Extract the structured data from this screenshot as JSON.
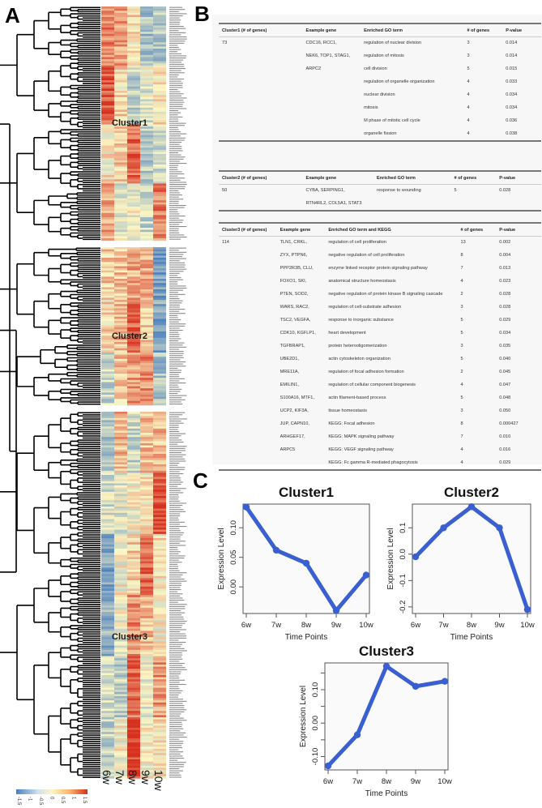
{
  "panel_labels": {
    "a": "A",
    "b": "B",
    "c": "C"
  },
  "heatmap": {
    "columns": [
      "6w",
      "7w",
      "8w",
      "9w",
      "10w"
    ],
    "cluster_labels": [
      "Cluster1",
      "Cluster2",
      "Cluster3"
    ],
    "colorbar": {
      "ticks": [
        "-1.5",
        "-1",
        "-0.5",
        "0",
        "0.5",
        "1",
        "1.5"
      ],
      "low_color": "#4a7fc1",
      "mid_color": "#fbf7c4",
      "high_color": "#d7301f"
    }
  },
  "tables": [
    {
      "headers": [
        "Cluster1 (# of genes)",
        "Example gene",
        "Enriched GO term",
        "# of genes",
        "P-value"
      ],
      "rows": [
        [
          "73",
          "CDC16, RCC1,",
          "regulation of nuclear division",
          "3",
          "0.014"
        ],
        [
          "",
          "NEK6, TOP1, STAG1,",
          "regulation of mitosis",
          "3",
          "0.014"
        ],
        [
          "",
          "ARPC2",
          "cell division",
          "5",
          "0.015"
        ],
        [
          "",
          "",
          "regulation of organelle organization",
          "4",
          "0.033"
        ],
        [
          "",
          "",
          "nuclear division",
          "4",
          "0.034"
        ],
        [
          "",
          "",
          "mitosis",
          "4",
          "0.034"
        ],
        [
          "",
          "",
          "M phase of mitotic cell cycle",
          "4",
          "0.036"
        ],
        [
          "",
          "",
          "organelle fission",
          "4",
          "0.038"
        ]
      ]
    },
    {
      "headers": [
        "Cluster2 (# of genes)",
        "Example gene",
        "Enriched GO term",
        "# of genes",
        "P-value"
      ],
      "rows": [
        [
          "50",
          "CYBA, SERPING1,",
          "response to wounding",
          "5",
          "0.028"
        ],
        [
          "",
          "RTN4RL2, COL5A1, STAT3",
          "",
          "",
          ""
        ]
      ]
    },
    {
      "headers": [
        "Cluster3 (# of genes)",
        "Example gene",
        "Enriched GO term and KEGG",
        "# of genes",
        "P-value"
      ],
      "rows": [
        [
          "114",
          "TLN1, CRKL,",
          "regulation of cell proliferation",
          "13",
          "0.002"
        ],
        [
          "",
          "ZYX, PTPN6,",
          "negative regulation of cell proliferation",
          "8",
          "0.004"
        ],
        [
          "",
          "PPP2R3B, CLU,",
          "enzyme linked receptor protein signaling pathway",
          "7",
          "0.013"
        ],
        [
          "",
          "FOXO1, SKI,",
          "anatomical structure homeostasis",
          "4",
          "0.023"
        ],
        [
          "",
          "PTEN, SOD2,",
          "negative regulation of protein kinase B signaling cascade",
          "2",
          "0.028"
        ],
        [
          "",
          "WARS, RAC2,",
          "regulation of cell-substrate adhesion",
          "3",
          "0.028"
        ],
        [
          "",
          "TSC2, VEGFA,",
          "response to inorganic substance",
          "5",
          "0.029"
        ],
        [
          "",
          "CDK10, KGFLP1,",
          "heart development",
          "5",
          "0.034"
        ],
        [
          "",
          "TGFBRAP1,",
          "protein heterooligomerization",
          "3",
          "0.035"
        ],
        [
          "",
          "UBE2D1,",
          "actin cytoskeleton organization",
          "5",
          "0.040"
        ],
        [
          "",
          "MRE11A,",
          "regulation of focal adhesion formation",
          "2",
          "0.045"
        ],
        [
          "",
          "EMILIN1,",
          "regulation of cellular component biogenesis",
          "4",
          "0.047"
        ],
        [
          "",
          "S100A16, MTF1,",
          "actin filament-based process",
          "5",
          "0.048"
        ],
        [
          "",
          "UCP2, KIF3A,",
          "tissue homeostasis",
          "3",
          "0.050"
        ],
        [
          "",
          "JUP, CAPN10,",
          "KEGG: Focal adhesion",
          "8",
          "0.000427"
        ],
        [
          "",
          "ARHGEF17,",
          "KEGG: MAPK signaling pathway",
          "7",
          "0.010"
        ],
        [
          "",
          "ARPC5",
          "KEGG: VEGF signaling pathway",
          "4",
          "0.016"
        ],
        [
          "",
          "",
          "KEGG: Fc gamma R-mediated phagocytosis",
          "4",
          "0.029"
        ]
      ]
    }
  ],
  "chart_data": [
    {
      "type": "line",
      "title": "Cluster1",
      "x": [
        "6w",
        "7w",
        "8w",
        "9w",
        "10w"
      ],
      "values": [
        0.135,
        0.062,
        0.04,
        -0.04,
        0.02
      ],
      "xlabel": "Time Points",
      "ylabel": "Expression Level",
      "ylim": [
        -0.045,
        0.14
      ],
      "yticks": [
        0.0,
        0.05,
        0.1
      ],
      "ytick_labels": [
        "0.00",
        "0.05",
        "0.10"
      ],
      "color": "#3a5fd0",
      "grid": false
    },
    {
      "type": "line",
      "title": "Cluster2",
      "x": [
        "6w",
        "7w",
        "8w",
        "9w",
        "10w"
      ],
      "values": [
        -0.01,
        0.1,
        0.18,
        0.1,
        -0.21
      ],
      "xlabel": "Time Points",
      "ylabel": "Expression Level",
      "ylim": [
        -0.225,
        0.19
      ],
      "yticks": [
        -0.2,
        -0.1,
        0.0,
        0.1
      ],
      "ytick_labels": [
        "-0.2",
        "-0.1",
        "0.0",
        "0.1"
      ],
      "color": "#3a5fd0",
      "grid": false
    },
    {
      "type": "line",
      "title": "Cluster3",
      "x": [
        "6w",
        "7w",
        "8w",
        "9w",
        "10w"
      ],
      "values": [
        -0.128,
        -0.035,
        0.17,
        0.11,
        0.125
      ],
      "xlabel": "Time Points",
      "ylabel": "Expression Level",
      "ylim": [
        -0.14,
        0.18
      ],
      "yticks": [
        -0.1,
        -0.05,
        0.0,
        0.05,
        0.1,
        0.15
      ],
      "ytick_labels": [
        "-0.10",
        "",
        "0.00",
        "",
        "0.10",
        ""
      ],
      "color": "#3a5fd0",
      "grid": false
    }
  ]
}
